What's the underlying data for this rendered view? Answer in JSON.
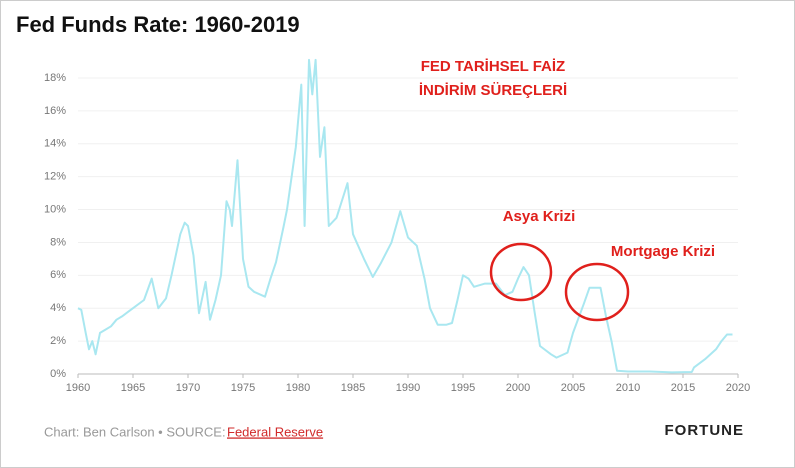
{
  "chart_data": {
    "type": "line",
    "title": "Fed Funds Rate: 1960-2019",
    "annotations": [
      "FED TARİHSEL FAİZ",
      "İNDİRİM SÜREÇLERİ",
      "Asya Krizi",
      "Mortgage Krizi"
    ],
    "credit": "Chart: Ben Carlson • SOURCE:",
    "source_link": "Federal Reserve",
    "brand": "FORTUNE",
    "color": "#a9e7f0",
    "annotation_color": "#e0201c",
    "x": [
      1960.0,
      1960.3,
      1960.7,
      1961.0,
      1961.3,
      1961.6,
      1962.0,
      1962.5,
      1963.0,
      1963.5,
      1964.0,
      1965.0,
      1966.0,
      1966.7,
      1967.3,
      1968.0,
      1968.5,
      1969.3,
      1969.7,
      1970.0,
      1970.5,
      1971.0,
      1971.6,
      1972.0,
      1972.5,
      1973.0,
      1973.5,
      1973.8,
      1974.0,
      1974.5,
      1975.0,
      1975.5,
      1976.0,
      1977.0,
      1977.5,
      1978.0,
      1978.7,
      1979.0,
      1979.8,
      1980.3,
      1980.6,
      1981.0,
      1981.3,
      1981.6,
      1982.0,
      1982.4,
      1982.8,
      1983.5,
      1984.5,
      1985.0,
      1986.0,
      1986.8,
      1987.5,
      1988.5,
      1989.3,
      1990.0,
      1990.8,
      1991.5,
      1992.0,
      1992.7,
      1993.5,
      1994.0,
      1994.5,
      1995.0,
      1995.5,
      1996.0,
      1997.0,
      1998.0,
      1998.8,
      1999.5,
      2000.0,
      2000.5,
      2001.0,
      2001.5,
      2002.0,
      2003.0,
      2003.5,
      2004.5,
      2005.0,
      2006.0,
      2006.5,
      2007.5,
      2008.0,
      2008.5,
      2009.0,
      2010.0,
      2012.0,
      2014.0,
      2015.8,
      2016.0,
      2017.0,
      2017.5,
      2018.0,
      2018.5,
      2019.0,
      2019.5
    ],
    "values": [
      4.0,
      3.9,
      2.5,
      1.5,
      2.0,
      1.2,
      2.5,
      2.7,
      2.9,
      3.3,
      3.5,
      4.0,
      4.5,
      5.8,
      4.0,
      4.6,
      6.0,
      8.5,
      9.2,
      9.0,
      7.2,
      3.7,
      5.6,
      3.3,
      4.5,
      6.0,
      10.5,
      10.0,
      9.0,
      13.0,
      7.0,
      5.3,
      5.0,
      4.7,
      5.8,
      6.8,
      9.0,
      10.0,
      13.8,
      17.6,
      9.0,
      19.1,
      17.0,
      19.1,
      13.2,
      15.0,
      9.0,
      9.5,
      11.6,
      8.5,
      7.0,
      5.9,
      6.7,
      8.0,
      9.9,
      8.3,
      7.8,
      5.8,
      4.0,
      3.0,
      3.0,
      3.1,
      4.5,
      6.0,
      5.8,
      5.3,
      5.5,
      5.5,
      4.8,
      5.0,
      5.8,
      6.5,
      6.0,
      3.8,
      1.7,
      1.2,
      1.0,
      1.3,
      2.5,
      4.3,
      5.25,
      5.25,
      3.5,
      2.0,
      0.2,
      0.15,
      0.15,
      0.1,
      0.12,
      0.4,
      0.9,
      1.2,
      1.5,
      2.0,
      2.4,
      2.4
    ],
    "xlim": [
      1960,
      2020
    ],
    "xticks": [
      1960,
      1965,
      1970,
      1975,
      1980,
      1985,
      1990,
      1995,
      2000,
      2005,
      2010,
      2015,
      2020
    ],
    "ylim": [
      0,
      19.5
    ],
    "yticks": [
      {
        "value": 0,
        "label": "0%"
      },
      {
        "value": 2,
        "label": "2%"
      },
      {
        "value": 4,
        "label": "4%"
      },
      {
        "value": 6,
        "label": "6%"
      },
      {
        "value": 8,
        "label": "8%"
      },
      {
        "value": 10,
        "label": "10%"
      },
      {
        "value": 12,
        "label": "12%"
      },
      {
        "value": 14,
        "label": "14%"
      },
      {
        "value": 16,
        "label": "16%"
      },
      {
        "value": 18,
        "label": "18%"
      }
    ],
    "grid": true
  }
}
